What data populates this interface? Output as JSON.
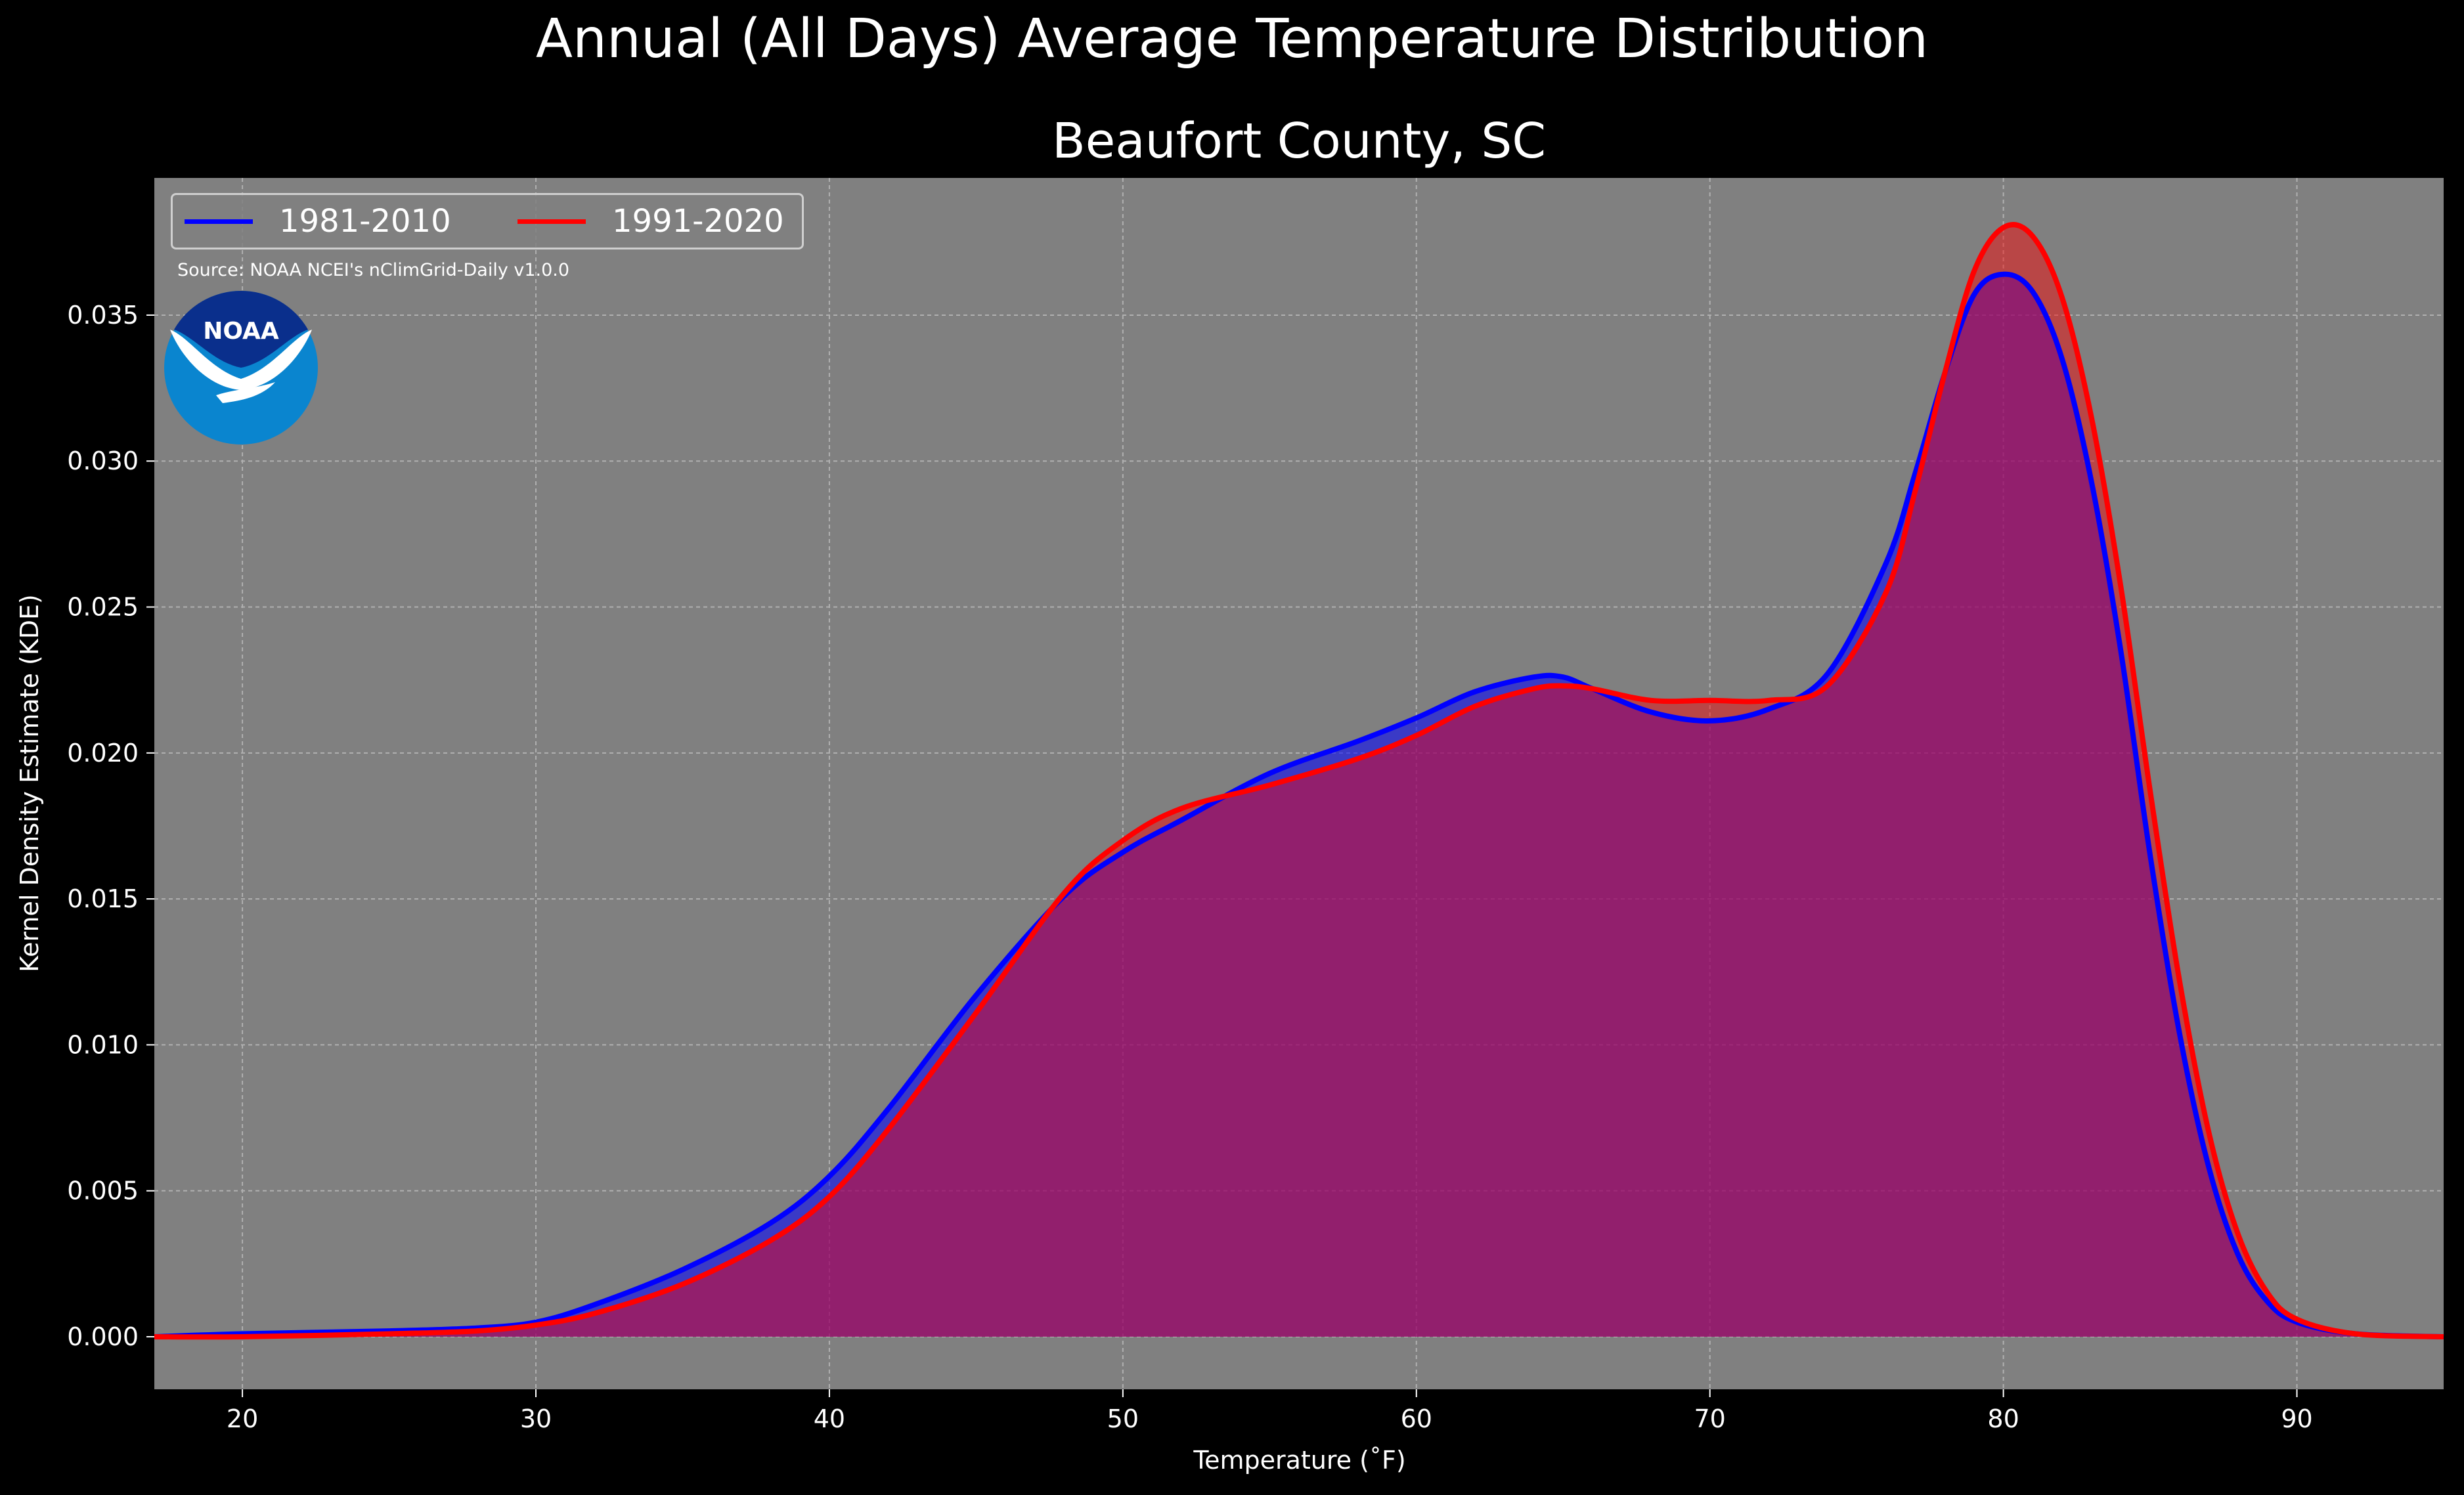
{
  "figure": {
    "suptitle": "Annual (All Days) Average Temperature Distribution",
    "source": "Source: NOAA NCEI's nClimGrid-Daily v1.0.0",
    "logo_text": "NOAA",
    "colors": {
      "background": "#000000",
      "plot_background": "#808080",
      "series_1981_2010": "#0000ff",
      "series_1991_2020": "#ff0000"
    }
  },
  "chart_data": {
    "type": "area",
    "title": "Beaufort County, SC",
    "xlabel": "Temperature ($^\\circ$F)",
    "xlabel_display": "Temperature (˚F)",
    "ylabel": "Kernel Density Estimate (KDE)",
    "xlim": [
      17,
      95
    ],
    "ylim": [
      -0.0018,
      0.0397
    ],
    "xticks": [
      20,
      30,
      40,
      50,
      60,
      70,
      80,
      90
    ],
    "yticks": [
      0.0,
      0.005,
      0.01,
      0.015,
      0.02,
      0.025,
      0.03,
      0.035
    ],
    "ytick_labels": [
      "0.000",
      "0.005",
      "0.010",
      "0.015",
      "0.020",
      "0.025",
      "0.030",
      "0.035"
    ],
    "grid": true,
    "legend_position": "top-left",
    "series": [
      {
        "name": "1981-2010",
        "color": "#0000ff",
        "x": [
          17,
          20,
          25,
          28,
          30,
          32,
          35,
          38,
          40,
          42,
          45,
          48,
          50,
          52,
          55,
          58,
          60,
          62,
          64,
          65,
          66,
          68,
          70,
          72,
          74,
          76,
          77,
          78,
          79,
          80,
          81,
          82,
          83,
          84,
          85,
          86,
          87,
          88,
          89,
          90,
          92,
          95
        ],
        "y": [
          0.0,
          0.0001,
          0.0002,
          0.0003,
          0.0005,
          0.0011,
          0.0023,
          0.0039,
          0.0055,
          0.0078,
          0.0117,
          0.0151,
          0.0166,
          0.0177,
          0.0193,
          0.0204,
          0.0212,
          0.0221,
          0.0226,
          0.0226,
          0.0222,
          0.0214,
          0.0211,
          0.0215,
          0.0227,
          0.0265,
          0.0296,
          0.033,
          0.0357,
          0.0364,
          0.0358,
          0.0335,
          0.0293,
          0.0235,
          0.0165,
          0.0104,
          0.0058,
          0.0028,
          0.0012,
          0.0005,
          0.0001,
          0.0
        ]
      },
      {
        "name": "1991-2020",
        "color": "#ff0000",
        "x": [
          17,
          20,
          25,
          28,
          30,
          32,
          35,
          38,
          40,
          42,
          45,
          48,
          50,
          52,
          55,
          58,
          60,
          62,
          64,
          65,
          66,
          68,
          70,
          72,
          74,
          76,
          77,
          78,
          79,
          80,
          81,
          82,
          83,
          84,
          85,
          86,
          87,
          88,
          89,
          90,
          92,
          95
        ],
        "y": [
          0.0,
          0.0,
          0.0001,
          0.0002,
          0.0004,
          0.0008,
          0.0018,
          0.0033,
          0.0048,
          0.0071,
          0.0111,
          0.0152,
          0.017,
          0.0181,
          0.0189,
          0.0198,
          0.0206,
          0.0216,
          0.0222,
          0.0223,
          0.0222,
          0.0218,
          0.0218,
          0.0218,
          0.0223,
          0.0255,
          0.029,
          0.033,
          0.0365,
          0.038,
          0.0377,
          0.0356,
          0.0315,
          0.0257,
          0.0187,
          0.0122,
          0.007,
          0.0035,
          0.0015,
          0.0006,
          0.0001,
          0.0
        ]
      }
    ]
  }
}
